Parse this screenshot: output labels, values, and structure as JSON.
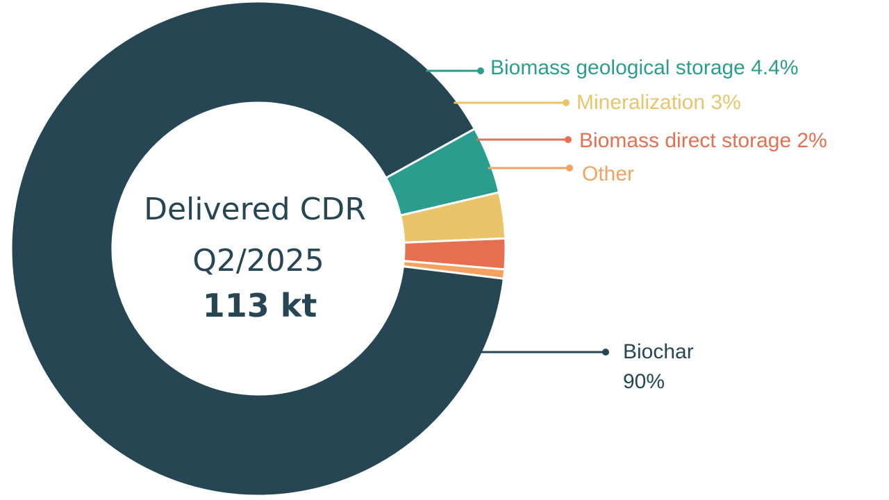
{
  "chart_data": {
    "type": "pie",
    "style": "donut",
    "center": {
      "line1": "Delivered CDR",
      "line2": "Q2/2025",
      "total": "113 kt"
    },
    "slices": [
      {
        "id": "biochar",
        "label": "Biochar",
        "value_label": "90%",
        "value": 90,
        "color": "#264653"
      },
      {
        "id": "biomass-geological-storage",
        "label": "Biomass geological storage 4.4%",
        "value_label": "",
        "value": 4.4,
        "color": "#2a9d8f"
      },
      {
        "id": "mineralization",
        "label": "Mineralization 3%",
        "value_label": "",
        "value": 3,
        "color": "#e9c46a"
      },
      {
        "id": "biomass-direct-storage",
        "label": "Biomass direct storage 2%",
        "value_label": "",
        "value": 2,
        "color": "#e76f51"
      },
      {
        "id": "other",
        "label": "Other",
        "value_label": "",
        "value": 0.6,
        "color": "#f4a261"
      }
    ]
  }
}
